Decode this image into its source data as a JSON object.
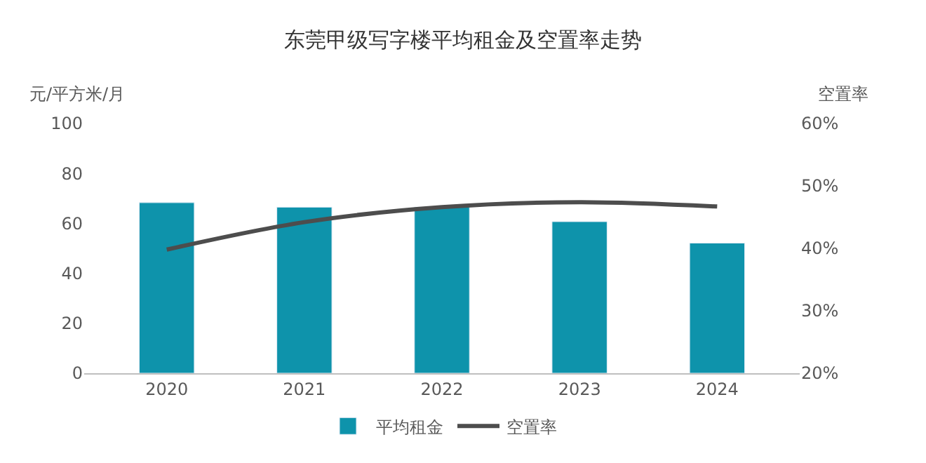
{
  "chart_data": {
    "type": "bar",
    "title": "东莞甲级写字楼平均租金及空置率走势",
    "ylabel": "元/平方米/月",
    "y2label": "空置率",
    "categories": [
      "2020",
      "2021",
      "2022",
      "2023",
      "2024"
    ],
    "series": [
      {
        "name": "平均租金",
        "color": "#0e93ab",
        "values": [
          68.3,
          66.5,
          66.5,
          60.7,
          52.1
        ]
      },
      {
        "name": "空置率",
        "type": "line",
        "axis": "y2",
        "color": "#4d4d4d",
        "marker": "none",
        "values": [
          39.8,
          44.2,
          46.6,
          47.4,
          46.7
        ]
      }
    ],
    "ylim": [
      0,
      100
    ],
    "yticks": [
      0,
      20,
      40,
      60,
      80,
      100
    ],
    "y2lim": [
      20,
      60
    ],
    "y2ticks": [
      {
        "value": 20,
        "label": "20%"
      },
      {
        "value": 30,
        "label": "30%"
      },
      {
        "value": 40,
        "label": "40%"
      },
      {
        "value": 50,
        "label": "50%"
      },
      {
        "value": 60,
        "label": "60%"
      }
    ],
    "grid": false,
    "legend": "bottom"
  }
}
